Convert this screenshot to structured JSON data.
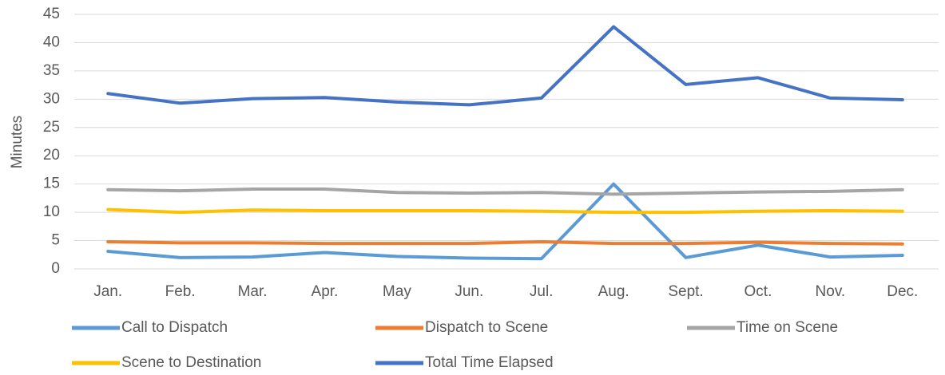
{
  "chart_data": {
    "type": "line",
    "y_label": "Minutes",
    "categories": [
      "Jan.",
      "Feb.",
      "Mar.",
      "Apr.",
      "May",
      "Jun.",
      "Jul.",
      "Aug.",
      "Sept.",
      "Oct.",
      "Nov.",
      "Dec."
    ],
    "series": [
      {
        "name": "Call to Dispatch",
        "color": "#5b9bd5",
        "values": [
          3.1,
          2.0,
          2.1,
          2.9,
          2.2,
          1.9,
          1.8,
          15.0,
          2.0,
          4.2,
          2.1,
          2.4
        ]
      },
      {
        "name": "Dispatch to Scene",
        "color": "#ed7d31",
        "values": [
          4.8,
          4.6,
          4.6,
          4.5,
          4.5,
          4.5,
          4.8,
          4.5,
          4.5,
          4.7,
          4.5,
          4.4
        ]
      },
      {
        "name": "Time on Scene",
        "color": "#a5a5a5",
        "values": [
          14.0,
          13.8,
          14.1,
          14.1,
          13.5,
          13.4,
          13.5,
          13.2,
          13.4,
          13.6,
          13.7,
          14.0
        ]
      },
      {
        "name": "Scene to Destination",
        "color": "#ffc000",
        "values": [
          10.5,
          10.0,
          10.4,
          10.3,
          10.3,
          10.3,
          10.2,
          10.0,
          10.0,
          10.2,
          10.3,
          10.2
        ]
      },
      {
        "name": "Total Time Elapsed",
        "color": "#4472c4",
        "values": [
          31.0,
          29.3,
          30.1,
          30.3,
          29.5,
          29.0,
          30.2,
          42.8,
          32.6,
          33.8,
          30.2,
          29.9
        ]
      }
    ],
    "ylim": [
      0,
      45
    ],
    "yticks": [
      0,
      5,
      10,
      15,
      20,
      25,
      30,
      35,
      40,
      45
    ],
    "grid": true,
    "legend": "bottom"
  }
}
